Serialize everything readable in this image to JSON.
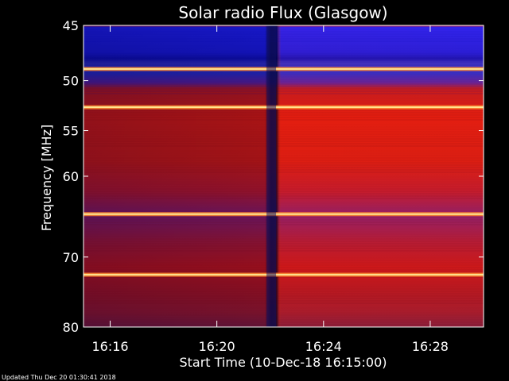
{
  "chart_data": {
    "type": "heatmap",
    "title": "Solar radio Flux (Glasgow)",
    "xlabel": "Start Time (10-Dec-18 16:15:00)",
    "ylabel": "Frequency [MHz]",
    "x_range": [
      "16:15:00",
      "16:30:00"
    ],
    "y_range": [
      45,
      80
    ],
    "y_scale": "log",
    "x_ticks": [
      "16:16",
      "16:20",
      "16:24",
      "16:28"
    ],
    "x_tick_minutes": [
      16.0,
      20.0,
      24.0,
      28.0
    ],
    "y_ticks": [
      45,
      50,
      55,
      60,
      70,
      80
    ],
    "grid": false,
    "colormap": "blue-red-yellow",
    "dark_gap_minute": 22.1,
    "bright_bands_mhz": [
      48.9,
      52.6,
      64.5,
      72.4
    ],
    "footer": "Updated Thu Dec 20 01:30:41 2018"
  },
  "colors": {
    "background": "#000000",
    "low": "#1010e0",
    "mid": "#d81010",
    "high": "#ffe070"
  }
}
